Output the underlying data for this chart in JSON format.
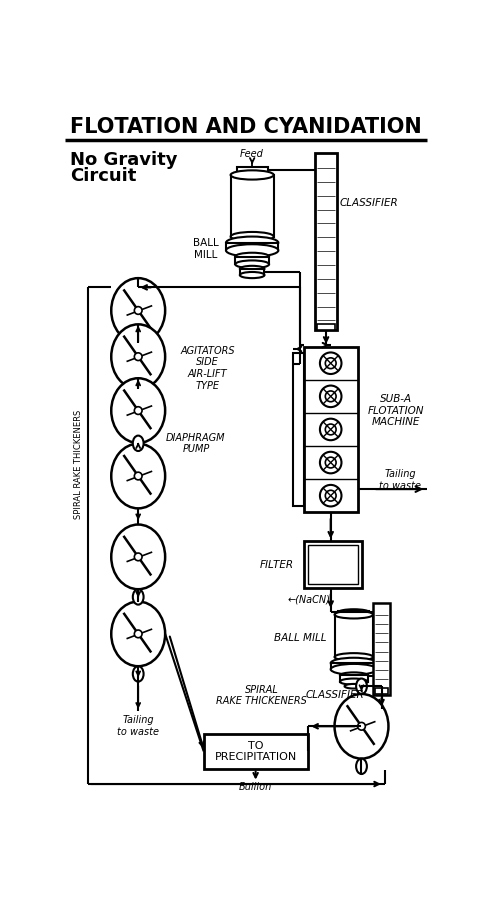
{
  "title": "FLOTATION AND CYANIDATION",
  "subtitle1": "No Gravity",
  "subtitle2": "Circuit",
  "bg_color": "#ffffff",
  "line_color": "#000000"
}
